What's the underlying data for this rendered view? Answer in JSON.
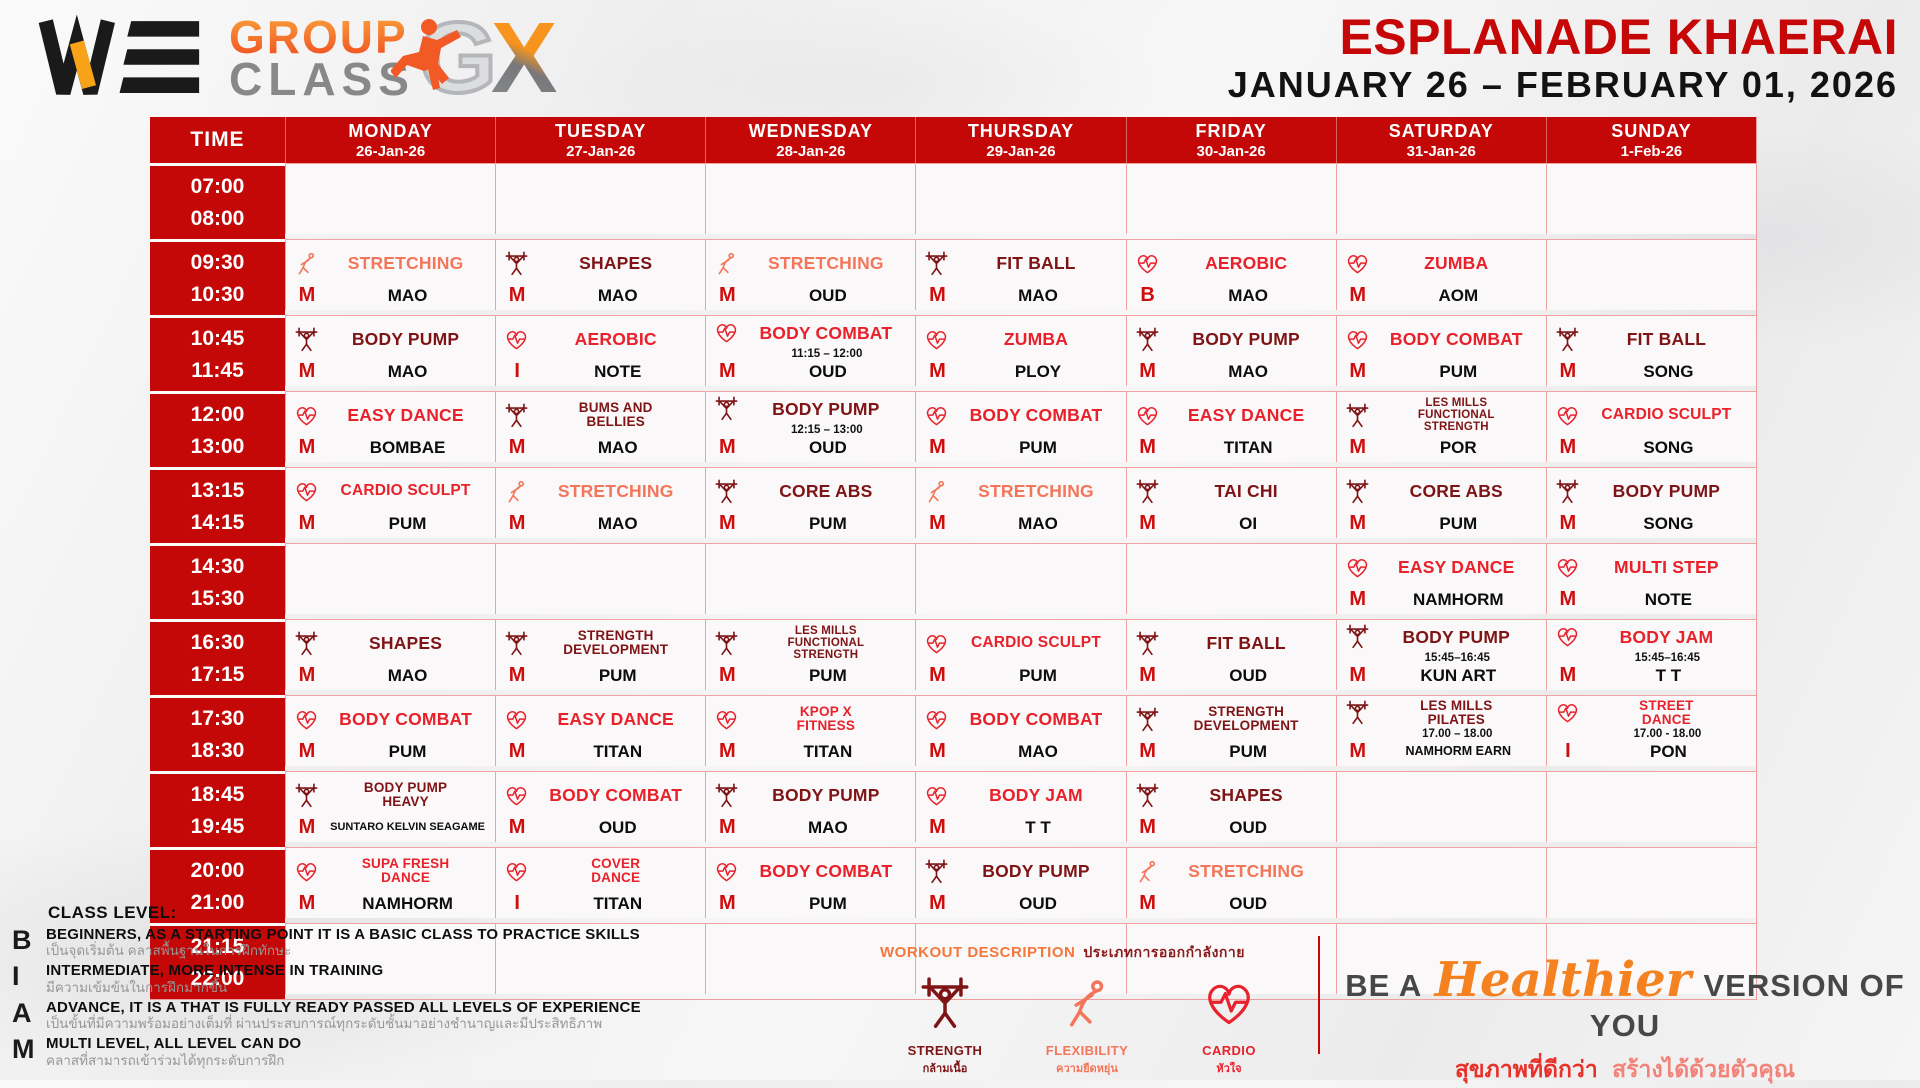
{
  "colors": {
    "accent_red": "#c40707",
    "class_red": "#e8212b",
    "class_dark": "#7e1416",
    "class_orange": "#f4765a",
    "level_red": "#ce0e0e"
  },
  "header": {
    "brand_we": "WE",
    "brand_group": "GROUP",
    "brand_class": "CLASS",
    "brand_g": "G",
    "brand_x": "X",
    "title": "ESPLANADE KHAERAI",
    "date_range": "JANUARY 26 – FEBRUARY 01, 2026"
  },
  "table": {
    "time_label": "TIME",
    "days": [
      {
        "name": "MONDAY",
        "date": "26-Jan-26"
      },
      {
        "name": "TUESDAY",
        "date": "27-Jan-26"
      },
      {
        "name": "WEDNESDAY",
        "date": "28-Jan-26"
      },
      {
        "name": "THURSDAY",
        "date": "29-Jan-26"
      },
      {
        "name": "FRIDAY",
        "date": "30-Jan-26"
      },
      {
        "name": "SATURDAY",
        "date": "31-Jan-26"
      },
      {
        "name": "SUNDAY",
        "date": "1-Feb-26"
      }
    ],
    "rows": [
      {
        "times": [
          "07:00",
          "08:00"
        ],
        "cells": [
          null,
          null,
          null,
          null,
          null,
          null,
          null
        ]
      },
      {
        "times": [
          "09:30",
          "10:30"
        ],
        "cells": [
          {
            "type": "flexibility",
            "tone": "orange",
            "lines": [
              "STRETCHING"
            ],
            "level": "M",
            "instructor": "MAO"
          },
          {
            "type": "strength",
            "tone": "dark",
            "lines": [
              "SHAPES"
            ],
            "level": "M",
            "instructor": "MAO"
          },
          {
            "type": "flexibility",
            "tone": "orange",
            "lines": [
              "STRETCHING"
            ],
            "level": "M",
            "instructor": "OUD"
          },
          {
            "type": "strength",
            "tone": "dark",
            "lines": [
              "FIT BALL"
            ],
            "level": "M",
            "instructor": "MAO"
          },
          {
            "type": "cardio",
            "tone": "red",
            "lines": [
              "AEROBIC"
            ],
            "level": "B",
            "instructor": "MAO"
          },
          {
            "type": "cardio",
            "tone": "red",
            "lines": [
              "ZUMBA"
            ],
            "level": "M",
            "instructor": "AOM"
          },
          null
        ]
      },
      {
        "times": [
          "10:45",
          "11:45"
        ],
        "cells": [
          {
            "type": "strength",
            "tone": "dark",
            "lines": [
              "BODY PUMP"
            ],
            "level": "M",
            "instructor": "MAO"
          },
          {
            "type": "cardio",
            "tone": "red",
            "lines": [
              "AEROBIC"
            ],
            "level": "I",
            "instructor": "NOTE"
          },
          {
            "type": "cardio",
            "tone": "red",
            "lines": [
              "BODY COMBAT"
            ],
            "sub": "11:15 – 12:00",
            "level": "M",
            "instructor": "OUD"
          },
          {
            "type": "cardio",
            "tone": "red",
            "lines": [
              "ZUMBA"
            ],
            "level": "M",
            "instructor": "PLOY"
          },
          {
            "type": "strength",
            "tone": "dark",
            "lines": [
              "BODY PUMP"
            ],
            "level": "M",
            "instructor": "MAO"
          },
          {
            "type": "cardio",
            "tone": "red",
            "lines": [
              "BODY COMBAT"
            ],
            "level": "M",
            "instructor": "PUM"
          },
          {
            "type": "strength",
            "tone": "dark",
            "lines": [
              "FIT BALL"
            ],
            "level": "M",
            "instructor": "SONG"
          }
        ]
      },
      {
        "times": [
          "12:00",
          "13:00"
        ],
        "cells": [
          {
            "type": "cardio",
            "tone": "red",
            "lines": [
              "EASY DANCE"
            ],
            "level": "M",
            "instructor": "BOMBAE"
          },
          {
            "type": "strength",
            "tone": "dark",
            "lines": [
              "BUMS AND",
              "BELLIES"
            ],
            "level": "M",
            "instructor": "MAO"
          },
          {
            "type": "strength",
            "tone": "dark",
            "lines": [
              "BODY PUMP"
            ],
            "sub": "12:15 – 13:00",
            "level": "M",
            "instructor": "OUD"
          },
          {
            "type": "cardio",
            "tone": "red",
            "lines": [
              "BODY COMBAT"
            ],
            "level": "M",
            "instructor": "PUM"
          },
          {
            "type": "cardio",
            "tone": "red",
            "lines": [
              "EASY DANCE"
            ],
            "level": "M",
            "instructor": "TITAN"
          },
          {
            "type": "strength",
            "tone": "dark",
            "lines": [
              "LES MILLS",
              "FUNCTIONAL",
              "STRENGTH"
            ],
            "level": "M",
            "instructor": "POR"
          },
          {
            "type": "cardio",
            "tone": "red",
            "lines": [
              "CARDIO SCULPT"
            ],
            "level": "M",
            "instructor": "SONG"
          }
        ]
      },
      {
        "times": [
          "13:15",
          "14:15"
        ],
        "cells": [
          {
            "type": "cardio",
            "tone": "red",
            "lines": [
              "CARDIO SCULPT"
            ],
            "level": "M",
            "instructor": "PUM"
          },
          {
            "type": "flexibility",
            "tone": "orange",
            "lines": [
              "STRETCHING"
            ],
            "level": "M",
            "instructor": "MAO"
          },
          {
            "type": "strength",
            "tone": "dark",
            "lines": [
              "CORE ABS"
            ],
            "level": "M",
            "instructor": "PUM"
          },
          {
            "type": "flexibility",
            "tone": "orange",
            "lines": [
              "STRETCHING"
            ],
            "level": "M",
            "instructor": "MAO"
          },
          {
            "type": "strength",
            "tone": "dark",
            "lines": [
              "TAI CHI"
            ],
            "level": "M",
            "instructor": "OI"
          },
          {
            "type": "strength",
            "tone": "dark",
            "lines": [
              "CORE ABS"
            ],
            "level": "M",
            "instructor": "PUM"
          },
          {
            "type": "strength",
            "tone": "dark",
            "lines": [
              "BODY PUMP"
            ],
            "level": "M",
            "instructor": "SONG"
          }
        ]
      },
      {
        "times": [
          "14:30",
          "15:30"
        ],
        "cells": [
          null,
          null,
          null,
          null,
          null,
          {
            "type": "cardio",
            "tone": "red",
            "lines": [
              "EASY DANCE"
            ],
            "level": "M",
            "instructor": "NAMHORM"
          },
          {
            "type": "cardio",
            "tone": "red",
            "lines": [
              "MULTI STEP"
            ],
            "level": "M",
            "instructor": "NOTE"
          }
        ]
      },
      {
        "times": [
          "16:30",
          "17:15"
        ],
        "cells": [
          {
            "type": "strength",
            "tone": "dark",
            "lines": [
              "SHAPES"
            ],
            "level": "M",
            "instructor": "MAO"
          },
          {
            "type": "strength",
            "tone": "dark",
            "lines": [
              "STRENGTH",
              "DEVELOPMENT"
            ],
            "level": "M",
            "instructor": "PUM"
          },
          {
            "type": "strength",
            "tone": "dark",
            "lines": [
              "LES MILLS",
              "FUNCTIONAL",
              "STRENGTH"
            ],
            "level": "M",
            "instructor": "PUM"
          },
          {
            "type": "cardio",
            "tone": "red",
            "lines": [
              "CARDIO SCULPT"
            ],
            "level": "M",
            "instructor": "PUM"
          },
          {
            "type": "strength",
            "tone": "dark",
            "lines": [
              "FIT BALL"
            ],
            "level": "M",
            "instructor": "OUD"
          },
          {
            "type": "strength",
            "tone": "dark",
            "lines": [
              "BODY PUMP"
            ],
            "sub": "15:45–16:45",
            "level": "M",
            "instructor": "KUN ART"
          },
          {
            "type": "cardio",
            "tone": "red",
            "lines": [
              "BODY JAM"
            ],
            "sub": "15:45–16:45",
            "level": "M",
            "instructor": "T T"
          }
        ]
      },
      {
        "times": [
          "17:30",
          "18:30"
        ],
        "cells": [
          {
            "type": "cardio",
            "tone": "red",
            "lines": [
              "BODY COMBAT"
            ],
            "level": "M",
            "instructor": "PUM"
          },
          {
            "type": "cardio",
            "tone": "red",
            "lines": [
              "EASY DANCE"
            ],
            "level": "M",
            "instructor": "TITAN"
          },
          {
            "type": "cardio",
            "tone": "red",
            "lines": [
              "KPOP X",
              "FITNESS"
            ],
            "level": "M",
            "instructor": "TITAN"
          },
          {
            "type": "cardio",
            "tone": "red",
            "lines": [
              "BODY COMBAT"
            ],
            "level": "M",
            "instructor": "MAO"
          },
          {
            "type": "strength",
            "tone": "dark",
            "lines": [
              "STRENGTH",
              "DEVELOPMENT"
            ],
            "level": "M",
            "instructor": "PUM"
          },
          {
            "type": "strength",
            "tone": "dark",
            "lines": [
              "LES MILLS",
              "PILATES"
            ],
            "sub": "17.00 – 18.00",
            "level": "M",
            "instructor": "NAMHORM EARN"
          },
          {
            "type": "cardio",
            "tone": "red",
            "lines": [
              "STREET",
              "DANCE"
            ],
            "sub": "17.00 - 18.00",
            "level": "I",
            "instructor": "PON"
          }
        ]
      },
      {
        "times": [
          "18:45",
          "19:45"
        ],
        "cells": [
          {
            "type": "strength",
            "tone": "dark",
            "lines": [
              "BODY PUMP",
              "HEAVY"
            ],
            "level": "M",
            "instructor": "SUNTARO KELVIN SEAGAME"
          },
          {
            "type": "cardio",
            "tone": "red",
            "lines": [
              "BODY COMBAT"
            ],
            "level": "M",
            "instructor": "OUD"
          },
          {
            "type": "strength",
            "tone": "dark",
            "lines": [
              "BODY PUMP"
            ],
            "level": "M",
            "instructor": "MAO"
          },
          {
            "type": "cardio",
            "tone": "red",
            "lines": [
              "BODY JAM"
            ],
            "level": "M",
            "instructor": "T T"
          },
          {
            "type": "strength",
            "tone": "dark",
            "lines": [
              "SHAPES"
            ],
            "level": "M",
            "instructor": "OUD"
          },
          null,
          null
        ]
      },
      {
        "times": [
          "20:00",
          "21:00"
        ],
        "cells": [
          {
            "type": "cardio",
            "tone": "red",
            "lines": [
              "SUPA FRESH",
              "DANCE"
            ],
            "level": "M",
            "instructor": "NAMHORM"
          },
          {
            "type": "cardio",
            "tone": "red",
            "lines": [
              "COVER",
              "DANCE"
            ],
            "level": "I",
            "instructor": "TITAN"
          },
          {
            "type": "cardio",
            "tone": "red",
            "lines": [
              "BODY COMBAT"
            ],
            "level": "M",
            "instructor": "PUM"
          },
          {
            "type": "strength",
            "tone": "dark",
            "lines": [
              "BODY PUMP"
            ],
            "level": "M",
            "instructor": "OUD"
          },
          {
            "type": "flexibility",
            "tone": "orange",
            "lines": [
              "STRETCHING"
            ],
            "level": "M",
            "instructor": "OUD"
          },
          null,
          null
        ]
      },
      {
        "times": [
          "21:15",
          "22:00"
        ],
        "cells": [
          null,
          null,
          null,
          null,
          null,
          null,
          null
        ]
      }
    ]
  },
  "legend": {
    "heading": "CLASS LEVEL:",
    "levels": [
      {
        "letter": "B",
        "text": "BEGINNERS, AS A STARTING POINT IT IS A BASIC CLASS TO PRACTICE SKILLS",
        "thai": "เป็นจุดเริ่มต้น คลาสพื้นฐานในการฝึกทักษะ"
      },
      {
        "letter": "I",
        "text": "INTERMEDIATE, MORE INTENSE IN TRAINING",
        "thai": "มีความเข้มข้นในการฝึกมากขึ้น"
      },
      {
        "letter": "A",
        "text": "ADVANCE, IT IS A THAT IS FULLY READY PASSED ALL LEVELS OF EXPERIENCE",
        "thai": "เป็นขั้นที่มีความพร้อมอย่างเต็มที่ ผ่านประสบการณ์ทุกระดับชั้นมาอย่างชำนาญและมีประสิทธิภาพ"
      },
      {
        "letter": "M",
        "text": "MULTI LEVEL, ALL LEVEL CAN DO",
        "thai": "คลาสที่สามารถเข้าร่วมได้ทุกระดับการฝึก"
      }
    ]
  },
  "workout": {
    "heading": "WORKOUT DESCRIPTION",
    "heading_thai": "ประเภทการออกกำลังกาย",
    "types": [
      {
        "icon": "strength-icon",
        "kind": "strength",
        "label": "STRENGTH",
        "thai": "กล้ามเนื้อ",
        "color": "#7e1416"
      },
      {
        "icon": "flexibility-icon",
        "kind": "flexibility",
        "label": "FLEXIBILITY",
        "thai": "ความยืดหยุ่น",
        "color": "#f4765a"
      },
      {
        "icon": "cardio-icon",
        "kind": "cardio",
        "label": "CARDIO",
        "thai": "หัวใจ",
        "color": "#e8212b"
      }
    ]
  },
  "tagline": {
    "be_a": "BE A",
    "healthier": "Healthier",
    "version": "VERSION OF YOU",
    "thai_bold": "สุขภาพที่ดีกว่า",
    "thai_light": "สร้างได้ด้วยตัวคุณ"
  }
}
